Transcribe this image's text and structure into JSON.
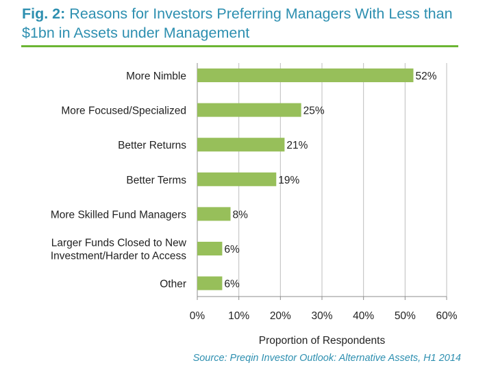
{
  "title": {
    "prefix": "Fig. 2:",
    "text": "Reasons for Investors Preferring Managers With Less than $1bn in Assets under Management"
  },
  "source": "Source: Preqin Investor Outlook: Alternative Assets, H1 2014",
  "colors": {
    "bar": "#97bf5a",
    "title": "#2d8fb0",
    "rule": "#6bb533",
    "grid": "#bdbdbd",
    "axis": "#8c8c8c",
    "text": "#222222"
  },
  "chart_data": {
    "type": "bar",
    "orientation": "horizontal",
    "categories": [
      [
        "More Nimble"
      ],
      [
        "More Focused/Specialized"
      ],
      [
        "Better Returns"
      ],
      [
        "Better Terms"
      ],
      [
        "More Skilled Fund Managers"
      ],
      [
        "Larger Funds Closed to New",
        "Investment/Harder to Access"
      ],
      [
        "Other"
      ]
    ],
    "values": [
      52,
      25,
      21,
      19,
      8,
      6,
      6
    ],
    "value_labels": [
      "52%",
      "25%",
      "21%",
      "19%",
      "8%",
      "6%",
      "6%"
    ],
    "xlim": [
      0,
      60
    ],
    "x_ticks": [
      0,
      10,
      20,
      30,
      40,
      50,
      60
    ],
    "x_tick_labels": [
      "0%",
      "10%",
      "20%",
      "30%",
      "40%",
      "50%",
      "60%"
    ],
    "xlabel": "Proportion of Respondents",
    "ylabel": "",
    "grid": "vertical",
    "legend": "none"
  }
}
